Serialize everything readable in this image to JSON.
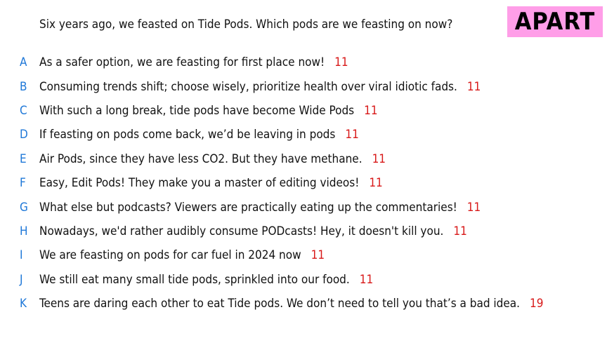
{
  "question": "Six years ago, we feasted on Tide Pods. Which pods are we feasting on now?",
  "logo": {
    "text": "APART",
    "background": "#ff9ee8"
  },
  "colors": {
    "letter": "#1f78d8",
    "score": "#d81818",
    "text": "#111111"
  },
  "options": [
    {
      "letter": "A",
      "text": "As a safer option, we are feasting for first place now!",
      "score": "11"
    },
    {
      "letter": "B",
      "text": "Consuming trends shift; choose wisely, prioritize health over viral idiotic fads.",
      "score": "11"
    },
    {
      "letter": "C",
      "text": "With such a long break, tide pods have become Wide Pods",
      "score": "11"
    },
    {
      "letter": "D",
      "text": "If feasting on pods come back, we’d be leaving in pods",
      "score": "11"
    },
    {
      "letter": "E",
      "text": "Air Pods, since they have less CO2. But they have methane.",
      "score": "11"
    },
    {
      "letter": "F",
      "text": "Easy, Edit Pods! They make you a master of editing videos!",
      "score": "11"
    },
    {
      "letter": "G",
      "text": "What else but podcasts? Viewers are practically eating up the commentaries!",
      "score": "11"
    },
    {
      "letter": "H",
      "text": "Nowadays, we'd rather audibly consume PODcasts! Hey, it doesn't kill you.",
      "score": "11"
    },
    {
      "letter": "I",
      "text": "We are feasting on pods for car fuel in 2024 now",
      "score": "11"
    },
    {
      "letter": "J",
      "text": "We still eat many small tide pods, sprinkled into our food.",
      "score": "11"
    },
    {
      "letter": "K",
      "text": "Teens are daring each other to eat Tide pods. We don’t need to tell you that’s a bad idea.",
      "score": "19"
    }
  ]
}
